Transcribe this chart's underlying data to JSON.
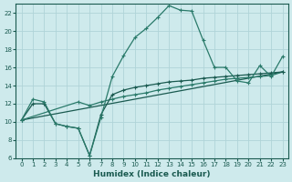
{
  "xlabel": "Humidex (Indice chaleur)",
  "bg_color": "#ceeaec",
  "grid_color": "#b0d4d8",
  "line_color1": "#2a7a6a",
  "line_color2": "#1a5a50",
  "xlim": [
    -0.5,
    23.5
  ],
  "ylim": [
    6,
    23
  ],
  "yticks": [
    6,
    8,
    10,
    12,
    14,
    16,
    18,
    20,
    22
  ],
  "xticks": [
    0,
    1,
    2,
    3,
    4,
    5,
    6,
    7,
    8,
    9,
    10,
    11,
    12,
    13,
    14,
    15,
    16,
    17,
    18,
    19,
    20,
    21,
    22,
    23
  ],
  "series1_x": [
    0,
    1,
    2,
    3,
    4,
    5,
    6,
    7,
    8,
    9,
    10,
    11,
    12,
    13,
    14,
    15,
    16,
    17,
    18,
    19,
    20,
    21,
    22,
    23
  ],
  "series1_y": [
    10.2,
    12.5,
    12.2,
    9.8,
    9.5,
    9.3,
    6.3,
    10.5,
    15.0,
    17.3,
    19.3,
    20.3,
    21.5,
    22.8,
    22.3,
    22.2,
    19.0,
    16.0,
    16.0,
    14.5,
    14.3,
    16.2,
    15.0,
    17.2
  ],
  "series2_x": [
    0,
    1,
    2,
    3,
    4,
    5,
    6,
    7,
    8,
    9,
    10,
    11,
    12,
    13,
    14,
    15,
    16,
    17,
    18,
    19,
    20,
    21,
    22,
    23
  ],
  "series2_y": [
    10.2,
    12.0,
    12.0,
    9.8,
    9.5,
    9.3,
    6.3,
    10.8,
    13.0,
    13.5,
    13.8,
    14.0,
    14.2,
    14.4,
    14.5,
    14.6,
    14.8,
    14.9,
    15.0,
    15.1,
    15.2,
    15.3,
    15.4,
    15.5
  ],
  "series3_x": [
    0,
    5,
    6,
    7,
    8,
    9,
    10,
    11,
    12,
    13,
    14,
    15,
    16,
    17,
    18,
    19,
    20,
    21,
    22,
    23
  ],
  "series3_y": [
    10.2,
    12.2,
    11.8,
    12.2,
    12.5,
    12.8,
    13.0,
    13.2,
    13.5,
    13.7,
    13.9,
    14.1,
    14.3,
    14.5,
    14.7,
    14.8,
    14.9,
    15.0,
    15.1,
    15.5
  ],
  "series4_x": [
    0,
    23
  ],
  "series4_y": [
    10.2,
    15.5
  ]
}
